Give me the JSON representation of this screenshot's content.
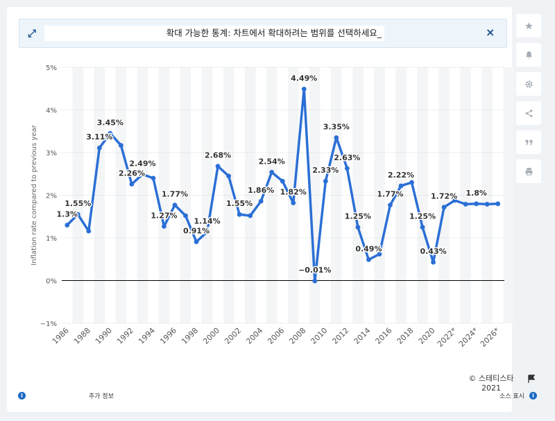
{
  "zoom_banner": {
    "message": "확대 가능한 통계: 차트에서 확대하려는 범위를 선택하세요_"
  },
  "toolbar": {
    "icons": [
      "star-icon",
      "bell-icon",
      "gear-icon",
      "share-icon",
      "quote-icon",
      "print-icon"
    ]
  },
  "footer": {
    "copyright_line1": "© 스테티스타",
    "copyright_line2": "2021",
    "more_info": "추가 정보",
    "show_source": "소스 표시"
  },
  "colors": {
    "line": "#2b6fd6",
    "background": "#ffffff",
    "band": "#f4f5f6",
    "grid": "#c9ced4",
    "zero_line": "#000000",
    "accent": "#1b4f8b"
  },
  "chart_data": {
    "type": "line",
    "title": "",
    "xlabel": "",
    "ylabel": "Inflation rate compared to previous year",
    "ylim": [
      -1,
      5
    ],
    "yticks": [
      "−1%",
      "0%",
      "1%",
      "2%",
      "3%",
      "4%",
      "5%"
    ],
    "ytick_values": [
      -1,
      0,
      1,
      2,
      3,
      4,
      5
    ],
    "xticks": [
      "1986",
      "1988",
      "1990",
      "1992",
      "1994",
      "1996",
      "1998",
      "2000",
      "2002",
      "2004",
      "2006",
      "2008",
      "2010",
      "2012",
      "2014",
      "2016",
      "2018",
      "2020",
      "2022*",
      "2024*",
      "2026*"
    ],
    "grid": true,
    "legend": "none",
    "series": [
      {
        "x": [
          1986,
          1987,
          1988,
          1989,
          1990,
          1991,
          1992,
          1993,
          1994,
          1995,
          1996,
          1997,
          1998,
          1999,
          2000,
          2001,
          2002,
          2003,
          2004,
          2005,
          2006,
          2007,
          2008,
          2009,
          2010,
          2011,
          2012,
          2013,
          2014,
          2015,
          2016,
          2017,
          2018,
          2019,
          2020,
          2021,
          2022,
          2023,
          2024,
          2025,
          2026
        ],
        "values": [
          1.3,
          1.55,
          1.16,
          3.11,
          3.45,
          3.17,
          2.26,
          2.49,
          2.4,
          1.27,
          1.77,
          1.52,
          0.91,
          1.14,
          2.68,
          2.45,
          1.55,
          1.52,
          1.86,
          2.54,
          2.33,
          1.82,
          4.49,
          -0.01,
          2.33,
          3.35,
          2.63,
          1.25,
          0.49,
          0.62,
          1.77,
          2.22,
          2.3,
          1.25,
          0.43,
          1.72,
          1.88,
          1.79,
          1.8,
          1.79,
          1.8
        ]
      }
    ],
    "data_labels": [
      {
        "x": 1986,
        "text": "1.3%"
      },
      {
        "x": 1987,
        "text": "1.55%"
      },
      {
        "x": 1989,
        "text": "3.11%"
      },
      {
        "x": 1990,
        "text": "3.45%"
      },
      {
        "x": 1992,
        "text": "2.26%"
      },
      {
        "x": 1993,
        "text": "2.49%"
      },
      {
        "x": 1995,
        "text": "1.27%"
      },
      {
        "x": 1996,
        "text": "1.77%"
      },
      {
        "x": 1998,
        "text": "0.91%"
      },
      {
        "x": 1999,
        "text": "1.14%"
      },
      {
        "x": 2000,
        "text": "2.68%"
      },
      {
        "x": 2002,
        "text": "1.55%"
      },
      {
        "x": 2004,
        "text": "1.86%"
      },
      {
        "x": 2005,
        "text": "2.54%"
      },
      {
        "x": 2007,
        "text": "1.82%"
      },
      {
        "x": 2008,
        "text": "4.49%"
      },
      {
        "x": 2009,
        "text": "−0.01%"
      },
      {
        "x": 2010,
        "text": "2.33%"
      },
      {
        "x": 2011,
        "text": "3.35%"
      },
      {
        "x": 2012,
        "text": "2.63%"
      },
      {
        "x": 2013,
        "text": "1.25%"
      },
      {
        "x": 2014,
        "text": "0.49%"
      },
      {
        "x": 2016,
        "text": "1.77%"
      },
      {
        "x": 2017,
        "text": "2.22%"
      },
      {
        "x": 2019,
        "text": "1.25%"
      },
      {
        "x": 2020,
        "text": "0.43%"
      },
      {
        "x": 2021,
        "text": "1.72%"
      },
      {
        "x": 2024,
        "text": "1.8%"
      }
    ]
  }
}
